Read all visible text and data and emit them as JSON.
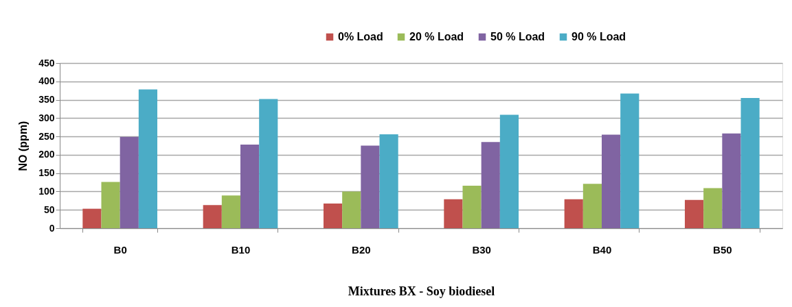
{
  "chart_data": {
    "type": "bar",
    "xlabel": "Mixtures BX - Soy biodiesel",
    "ylabel": "NO (ppm)",
    "categories": [
      "B0",
      "B10",
      "B20",
      "B30",
      "B40",
      "B50"
    ],
    "series": [
      {
        "name": "0% Load",
        "color": "#c0504d",
        "values": [
          53,
          63,
          67,
          79,
          79,
          77
        ]
      },
      {
        "name": "20 % Load",
        "color": "#9bbb59",
        "values": [
          126,
          89,
          100,
          116,
          121,
          109
        ]
      },
      {
        "name": "50 % Load",
        "color": "#8064a2",
        "values": [
          249,
          228,
          225,
          235,
          255,
          258
        ]
      },
      {
        "name": "90 % Load",
        "color": "#4bacc6",
        "values": [
          378,
          352,
          256,
          309,
          367,
          355
        ]
      }
    ],
    "ylim": [
      0,
      450
    ],
    "yticks": [
      0,
      50,
      100,
      150,
      200,
      250,
      300,
      350,
      400,
      450
    ],
    "grid": "y",
    "legend": "top"
  }
}
